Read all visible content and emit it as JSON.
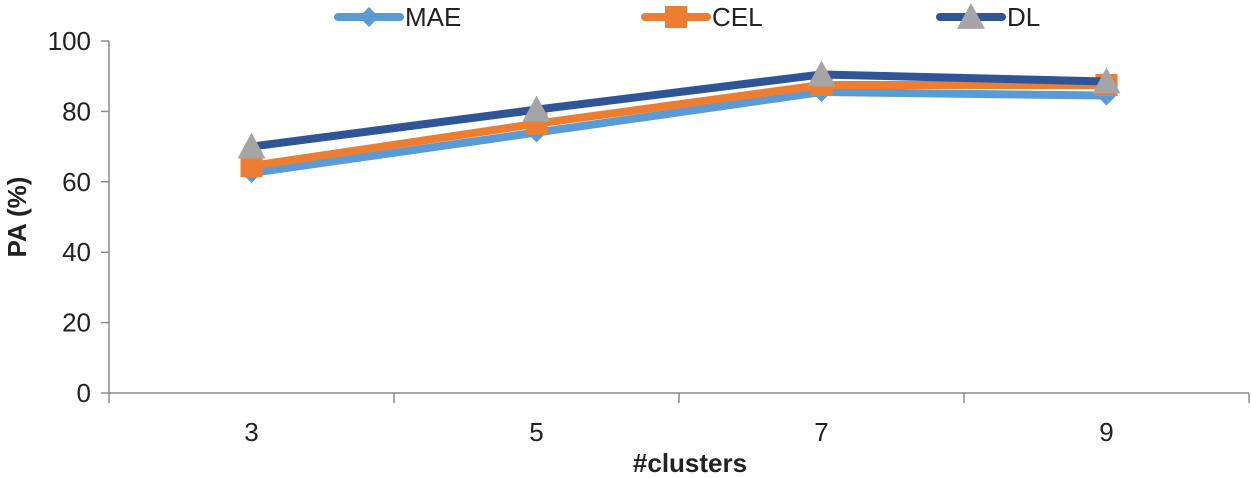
{
  "chart_data": {
    "type": "line",
    "title": "",
    "xlabel": "#clusters",
    "ylabel": "PA (%)",
    "categories": [
      "3",
      "5",
      "7",
      "9"
    ],
    "ylim": [
      0,
      100
    ],
    "yticks": [
      0,
      20,
      40,
      60,
      80,
      100
    ],
    "y_tick_labels": [
      "0",
      "20",
      "40",
      "60",
      "80",
      "100"
    ],
    "grid": false,
    "legend": "top",
    "series": [
      {
        "name": "MAE",
        "values": [
          62.5,
          74,
          85.5,
          84.5
        ],
        "color": "#5b9bd5",
        "marker": "diamond"
      },
      {
        "name": "CEL",
        "values": [
          64.5,
          76.5,
          87.5,
          87.5
        ],
        "color": "#ed7d31",
        "marker": "square"
      },
      {
        "name": "DL",
        "values": [
          70,
          80.5,
          90.5,
          88.5
        ],
        "color": "#2f5597",
        "marker": "triangle",
        "marker_color": "#a5a5a5"
      }
    ]
  }
}
